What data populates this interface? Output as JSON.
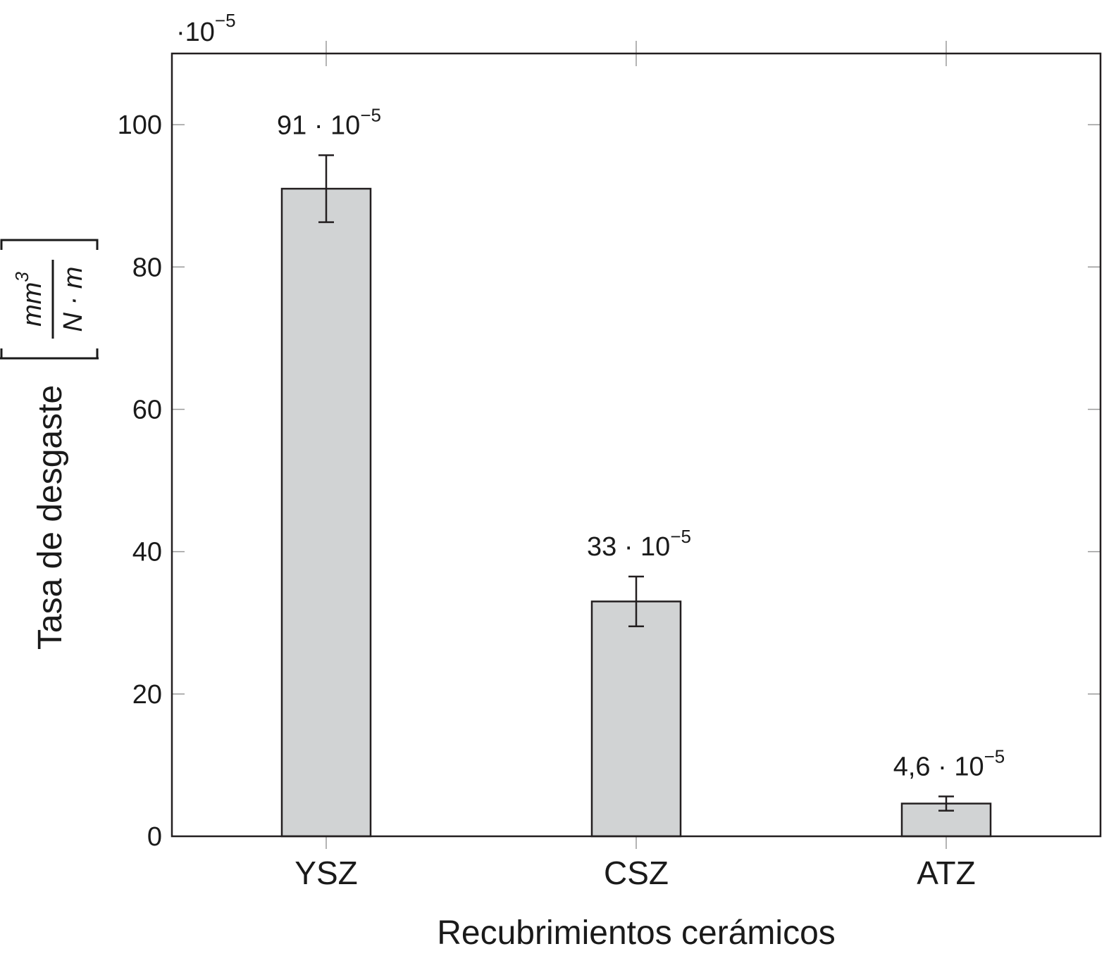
{
  "chart_data": {
    "type": "bar",
    "title": "",
    "xlabel": "Recubrimientos cerámicos",
    "ylabel": "Tasa de desgaste",
    "ylabel_unit": {
      "numerator_base": "mm",
      "numerator_exp": "3",
      "denominator": "N · m"
    },
    "scale_factor": {
      "prefix": "·10",
      "exponent": "−5"
    },
    "categories": [
      "YSZ",
      "CSZ",
      "ATZ"
    ],
    "values": [
      91,
      33,
      4.6
    ],
    "error": [
      4.7,
      3.5,
      1.0
    ],
    "value_labels": [
      {
        "base": "91 · 10",
        "exp": "−5"
      },
      {
        "base": "33 · 10",
        "exp": "−5"
      },
      {
        "base": "4,6 · 10",
        "exp": "−5"
      }
    ],
    "ylim": [
      0,
      110
    ],
    "yticks": [
      0,
      20,
      40,
      60,
      80,
      100
    ],
    "grid": false,
    "legend": "none",
    "colors": {
      "bar_fill": "#d1d3d4",
      "bar_stroke": "#231f20",
      "axis": "#231f20"
    }
  }
}
